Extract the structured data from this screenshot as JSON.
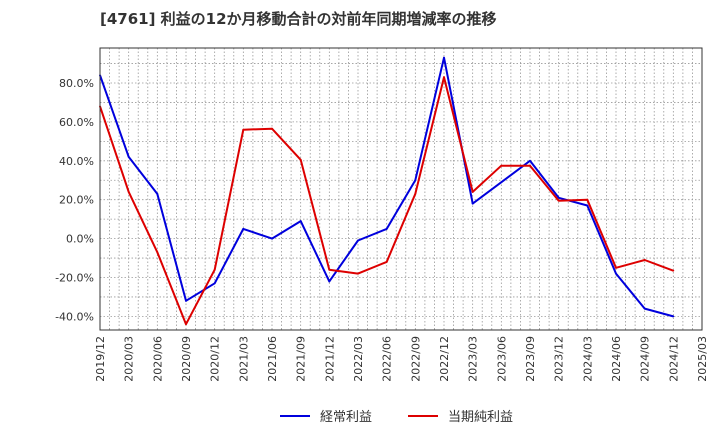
{
  "chart_data": {
    "type": "line",
    "title": "[4761]  利益の12か月移動合計の対前年同期増減率の推移",
    "xlabel": "",
    "ylabel": "",
    "ylim": [
      -47,
      98
    ],
    "yticks": [
      -40,
      -20,
      0,
      20,
      40,
      60,
      80
    ],
    "ytick_labels": [
      "-40.0%",
      "-20.0%",
      "0.0%",
      "20.0%",
      "40.0%",
      "60.0%",
      "80.0%"
    ],
    "categories": [
      "2019/12",
      "2020/03",
      "2020/06",
      "2020/09",
      "2020/12",
      "2021/03",
      "2021/06",
      "2021/09",
      "2021/12",
      "2022/03",
      "2022/06",
      "2022/09",
      "2022/12",
      "2023/03",
      "2023/06",
      "2023/09",
      "2023/12",
      "2024/03",
      "2024/06",
      "2024/09",
      "2024/12",
      "2025/03"
    ],
    "x": [
      "2019/12",
      "2020/01",
      "2020/03",
      "2020/05",
      "2020/06",
      "2020/07",
      "2020/09",
      "2020/12",
      "2021/01",
      "2021/03",
      "2021/06",
      "2021/07",
      "2021/09",
      "2021/10",
      "2021/12",
      "2022/03",
      "2022/06",
      "2022/09",
      "2022/12",
      "2023/03",
      "2023/05",
      "2023/06",
      "2023/09",
      "2023/10",
      "2023/12",
      "2024/03",
      "2024/06",
      "2024/09",
      "2024/12"
    ],
    "series": [
      {
        "name": "経常利益",
        "color": "#0000dd",
        "values": [
          84,
          null,
          42,
          null,
          23,
          null,
          -32,
          -23,
          null,
          5,
          0,
          null,
          9,
          null,
          -22,
          -1,
          5,
          30,
          93,
          18,
          null,
          null,
          40,
          null,
          21,
          17,
          -18,
          -36,
          -40
        ]
      },
      {
        "name": "当期純利益",
        "color": "#dd0000",
        "values": [
          68,
          null,
          24,
          null,
          -7,
          null,
          -44,
          -16,
          null,
          56,
          56.5,
          null,
          40.5,
          null,
          -16,
          -18,
          -12,
          23,
          83,
          24,
          null,
          37.5,
          37.5,
          null,
          19.5,
          20,
          -15,
          -11,
          -16.5
        ]
      }
    ],
    "legend": {
      "position": "bottom",
      "entries": [
        "経常利益",
        "当期純利益"
      ]
    },
    "grid": true
  }
}
